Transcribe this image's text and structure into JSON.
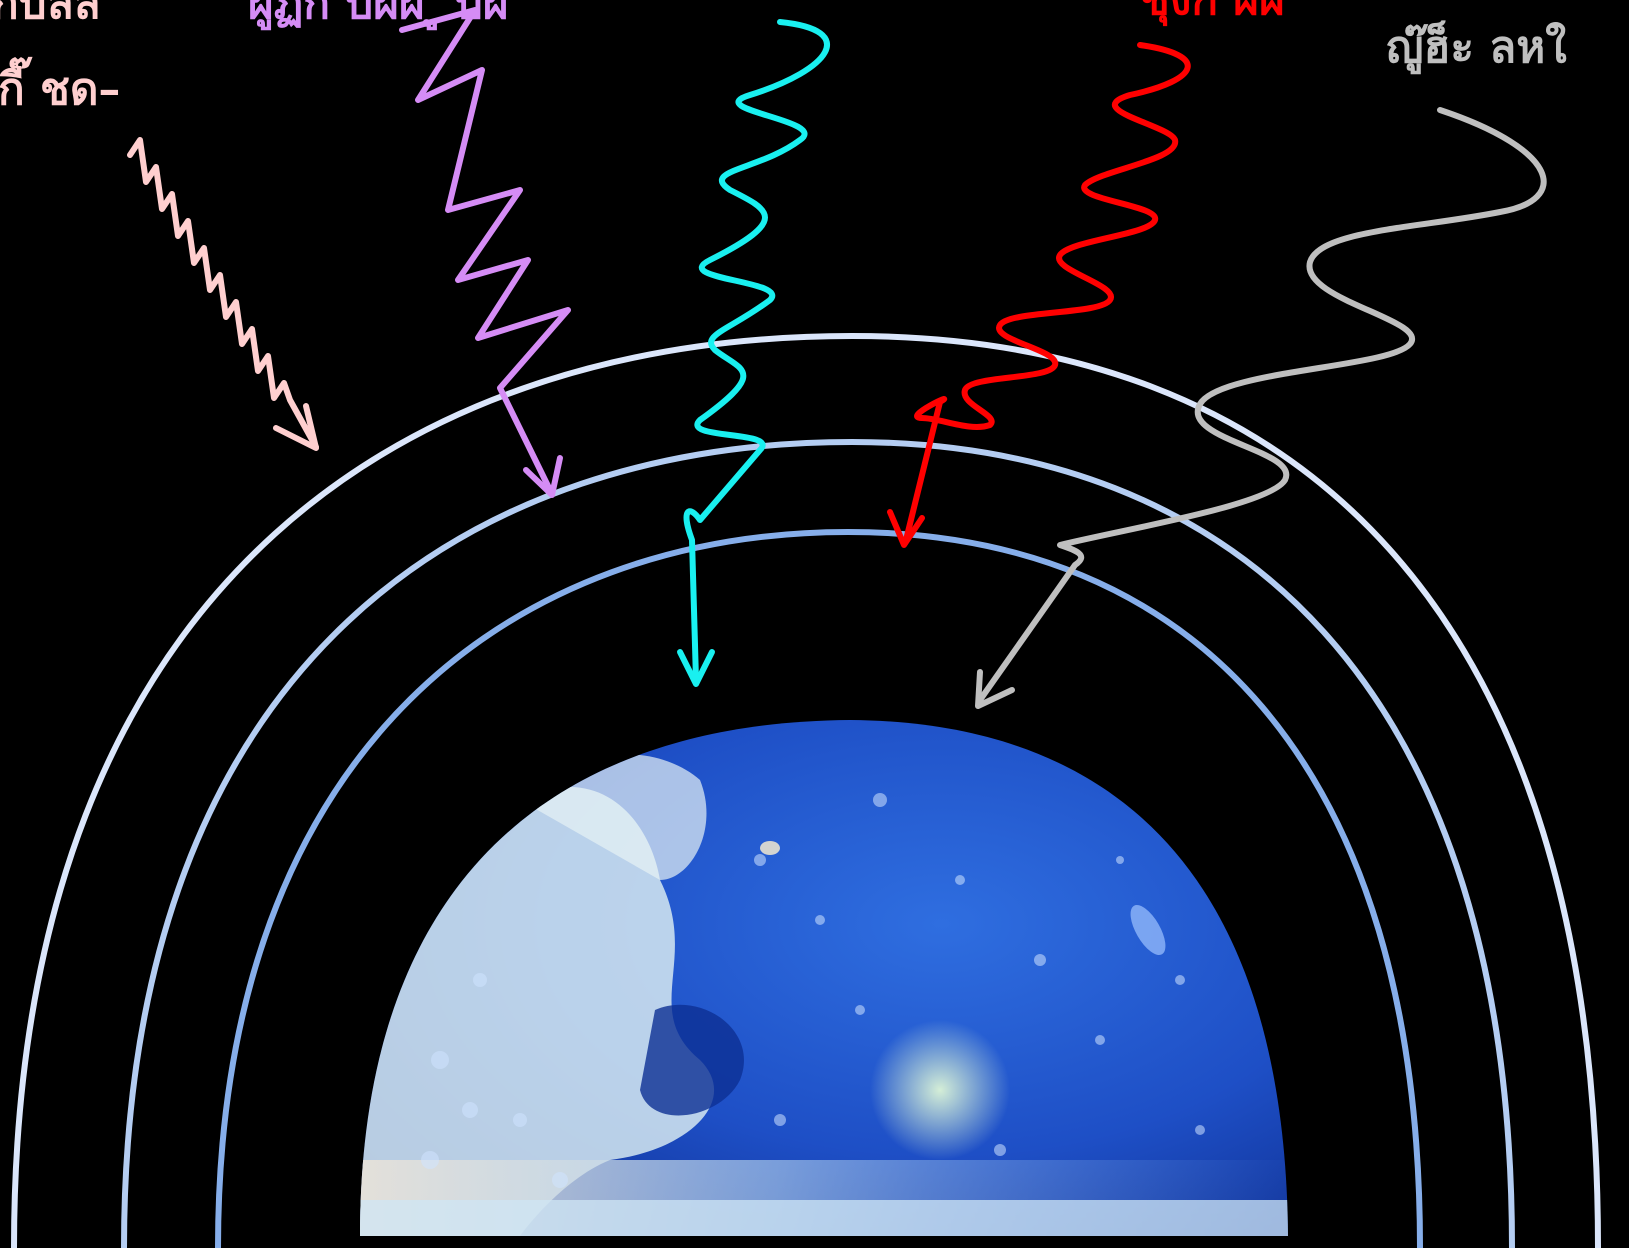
{
  "labels": {
    "top_left_1": "กับลิล",
    "top_left_2": "กี๊ ชด–",
    "violet": "ผู้ฏ้ก บผผ ู  บผ",
    "red": "ชุงก ผผ",
    "grey": "ญู๊ฮ็ะ ลหใ"
  },
  "colors": {
    "background": "#000000",
    "pink": "#ffcfcf",
    "violet": "#d58cf5",
    "cyan": "#19f0f0",
    "red": "#ff0000",
    "grey": "#bfbfbf",
    "outer_ring": "#dbe6fb",
    "middle_ring": "#b4cdf2",
    "inner_ring": "#86aeea",
    "earth_ocean": "#1e50c8",
    "earth_land": "#cfe6f2"
  },
  "icons": {
    "earth": "earth-hemisphere-icon"
  }
}
